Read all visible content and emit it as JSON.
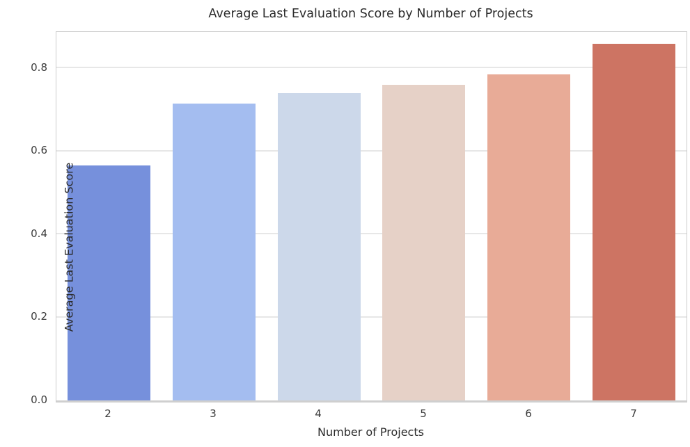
{
  "figure": {
    "background": "#ffffff",
    "text_color": "#2b2b2b",
    "tick_color": "#3a3a3a",
    "grid_color": "#e7e7e7",
    "spine_color": "#cccccc"
  },
  "chart_data": {
    "type": "bar",
    "title": "Average Last Evaluation Score by Number of Projects",
    "xlabel": "Number of Projects",
    "ylabel": "Average Last Evaluation Score",
    "categories": [
      "2",
      "3",
      "4",
      "5",
      "6",
      "7"
    ],
    "values": [
      0.565,
      0.715,
      0.74,
      0.76,
      0.785,
      0.858
    ],
    "bar_colors": [
      "#7690dc",
      "#a4bdf0",
      "#ccd8ea",
      "#e6d1c7",
      "#e8ab97",
      "#cd7463"
    ],
    "palette": "coolwarm",
    "ylim": [
      0,
      0.887
    ],
    "yticks": [
      0.0,
      0.2,
      0.4,
      0.6,
      0.8
    ],
    "ytick_labels": [
      "0.0",
      "0.2",
      "0.4",
      "0.6",
      "0.8"
    ],
    "grid": true,
    "legend": "none"
  }
}
